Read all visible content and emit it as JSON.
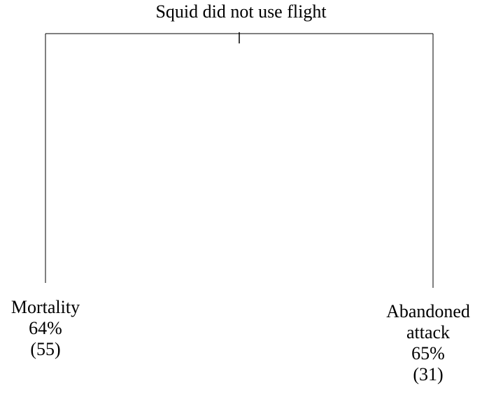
{
  "root": {
    "label": "Squid did not use flight"
  },
  "branches": [
    {
      "lines": [
        "Mortality",
        "64%",
        "(55)"
      ]
    },
    {
      "lines": [
        "Abandoned",
        "attack",
        "65%",
        "(31)"
      ]
    }
  ],
  "colors": {
    "line": "#000000",
    "text": "#000000",
    "background": "#ffffff"
  }
}
